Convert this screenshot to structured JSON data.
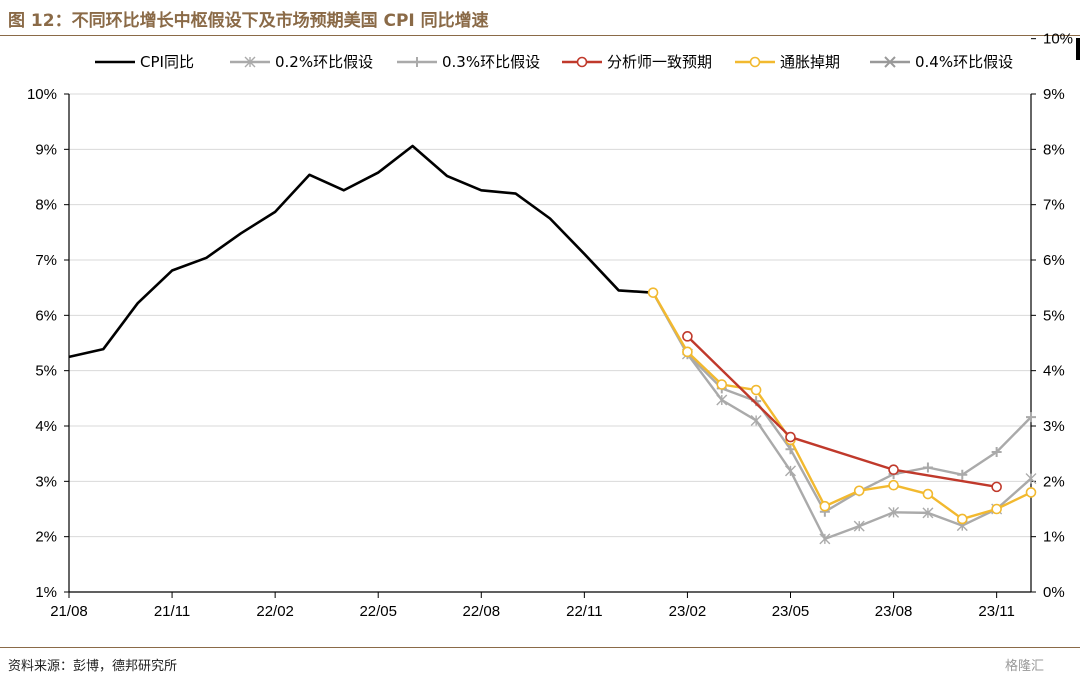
{
  "page": {
    "title": "图 12：不同环比增长中枢假设下及市场预期美国 CPI 同比增速",
    "source": "资料来源：彭博，德邦研究所",
    "watermark": "格隆汇"
  },
  "chart_data": {
    "type": "line",
    "x_dates": [
      "21/08",
      "21/09",
      "21/10",
      "21/11",
      "21/12",
      "22/01",
      "22/02",
      "22/03",
      "22/04",
      "22/05",
      "22/06",
      "22/07",
      "22/08",
      "22/09",
      "22/10",
      "22/11",
      "22/12",
      "23/01",
      "23/02",
      "23/03",
      "23/04",
      "23/05",
      "23/06",
      "23/07",
      "23/08",
      "23/09",
      "23/10",
      "23/11",
      "23/12"
    ],
    "x_tick_labels": [
      "21/08",
      "21/11",
      "22/02",
      "22/05",
      "22/08",
      "22/11",
      "23/02",
      "23/05",
      "23/08",
      "23/11"
    ],
    "left_axis": {
      "ylim": [
        1,
        10
      ],
      "ticks": [
        "1%",
        "2%",
        "3%",
        "4%",
        "5%",
        "6%",
        "7%",
        "8%",
        "9%",
        "10%"
      ]
    },
    "right_axis": {
      "ylim": [
        0,
        9
      ],
      "ticks": [
        "0%",
        "1%",
        "2%",
        "3%",
        "4%",
        "5%",
        "6%",
        "7%",
        "8%",
        "9%",
        "10%"
      ]
    },
    "grid": "horizontal",
    "legend_position": "top",
    "series": [
      {
        "name": "CPI同比",
        "color": "#000000",
        "marker": "none",
        "points": [
          [
            "21/08",
            5.25
          ],
          [
            "21/09",
            5.39
          ],
          [
            "21/10",
            6.22
          ],
          [
            "21/11",
            6.81
          ],
          [
            "21/12",
            7.04
          ],
          [
            "22/01",
            7.48
          ],
          [
            "22/02",
            7.87
          ],
          [
            "22/03",
            8.54
          ],
          [
            "22/04",
            8.26
          ],
          [
            "22/05",
            8.58
          ],
          [
            "22/06",
            9.06
          ],
          [
            "22/07",
            8.52
          ],
          [
            "22/08",
            8.26
          ],
          [
            "22/09",
            8.2
          ],
          [
            "22/10",
            7.75
          ],
          [
            "22/11",
            7.11
          ],
          [
            "22/12",
            6.45
          ],
          [
            "23/01",
            6.41
          ]
        ]
      },
      {
        "name": "0.2%环比假设",
        "color": "#aaaaaa",
        "marker": "star",
        "points": [
          [
            "23/01",
            6.41
          ],
          [
            "23/02",
            5.3
          ],
          [
            "23/03",
            4.47
          ],
          [
            "23/04",
            4.1
          ],
          [
            "23/05",
            3.19
          ],
          [
            "23/06",
            1.96
          ],
          [
            "23/07",
            2.19
          ],
          [
            "23/08",
            2.44
          ],
          [
            "23/09",
            2.43
          ],
          [
            "23/10",
            2.2
          ],
          [
            "23/11",
            2.5
          ],
          [
            "23/12",
            3.05
          ]
        ]
      },
      {
        "name": "0.3%环比假设",
        "color": "#aaaaaa",
        "marker": "plus",
        "points": [
          [
            "23/01",
            6.41
          ],
          [
            "23/02",
            5.3
          ],
          [
            "23/03",
            4.68
          ],
          [
            "23/04",
            4.45
          ],
          [
            "23/05",
            3.58
          ],
          [
            "23/06",
            2.45
          ],
          [
            "23/07",
            2.82
          ],
          [
            "23/08",
            3.13
          ],
          [
            "23/09",
            3.25
          ],
          [
            "23/10",
            3.12
          ],
          [
            "23/11",
            3.53
          ],
          [
            "23/12",
            4.16
          ]
        ]
      },
      {
        "name": "分析师一致预期",
        "color": "#c0392b",
        "marker": "circle",
        "points": [
          [
            "23/02",
            5.62
          ],
          [
            "23/05",
            3.8
          ],
          [
            "23/08",
            3.21
          ],
          [
            "23/11",
            2.9
          ]
        ]
      },
      {
        "name": "通胀掉期",
        "color": "#f2b92f",
        "marker": "circle",
        "points": [
          [
            "23/01",
            6.41
          ],
          [
            "23/02",
            5.34
          ],
          [
            "23/03",
            4.75
          ],
          [
            "23/04",
            4.65
          ],
          [
            "23/05",
            3.75
          ],
          [
            "23/06",
            2.55
          ],
          [
            "23/07",
            2.83
          ],
          [
            "23/08",
            2.93
          ],
          [
            "23/09",
            2.77
          ],
          [
            "23/10",
            2.32
          ],
          [
            "23/11",
            2.5
          ],
          [
            "23/12",
            2.8
          ]
        ]
      },
      {
        "name": "0.4%环比假设",
        "color": "#999999",
        "marker": "x",
        "points": []
      }
    ]
  }
}
